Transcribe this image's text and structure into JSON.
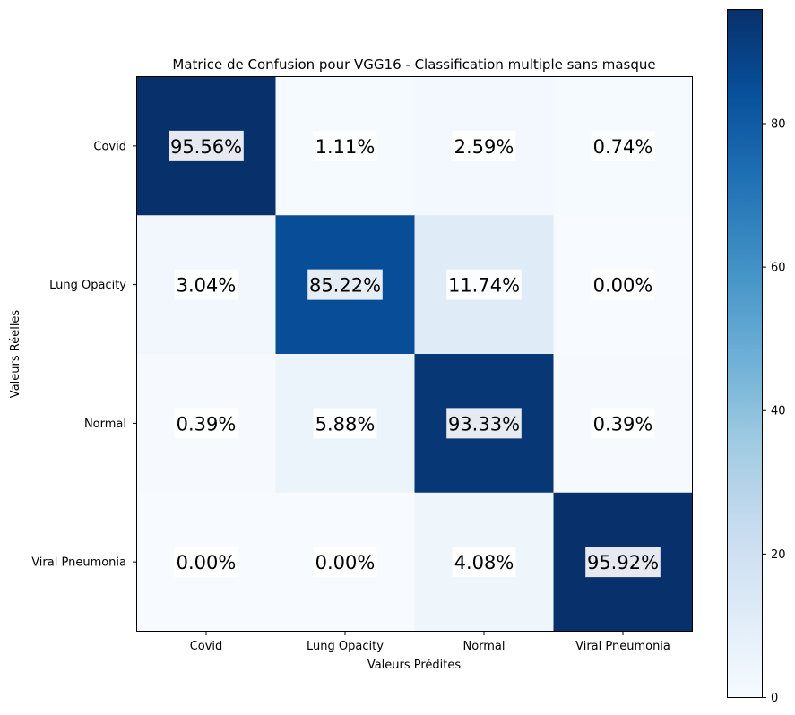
{
  "chart_data": {
    "type": "heatmap",
    "title": "Matrice de Confusion pour VGG16 - Classification multiple sans masque",
    "xlabel": "Valeurs Prédites",
    "ylabel": "Valeurs Réelles",
    "x_categories": [
      "Covid",
      "Lung Opacity",
      "Normal",
      "Viral Pneumonia"
    ],
    "y_categories": [
      "Covid",
      "Lung Opacity",
      "Normal",
      "Viral Pneumonia"
    ],
    "values": [
      [
        95.56,
        1.11,
        2.59,
        0.74
      ],
      [
        3.04,
        85.22,
        11.74,
        0.0
      ],
      [
        0.39,
        5.88,
        93.33,
        0.39
      ],
      [
        0.0,
        0.0,
        4.08,
        95.92
      ]
    ],
    "labels": [
      [
        "95.56%",
        "1.11%",
        "2.59%",
        "0.74%"
      ],
      [
        "3.04%",
        "85.22%",
        "11.74%",
        "0.00%"
      ],
      [
        "0.39%",
        "5.88%",
        "93.33%",
        "0.39%"
      ],
      [
        "0.00%",
        "0.00%",
        "4.08%",
        "95.92%"
      ]
    ],
    "colormap": "Blues",
    "colorbar": {
      "vmin": 0,
      "vmax": 95.92,
      "ticks": [
        0,
        20,
        40,
        60,
        80
      ],
      "tick_labels": [
        "0",
        "20",
        "40",
        "60",
        "80"
      ]
    }
  }
}
